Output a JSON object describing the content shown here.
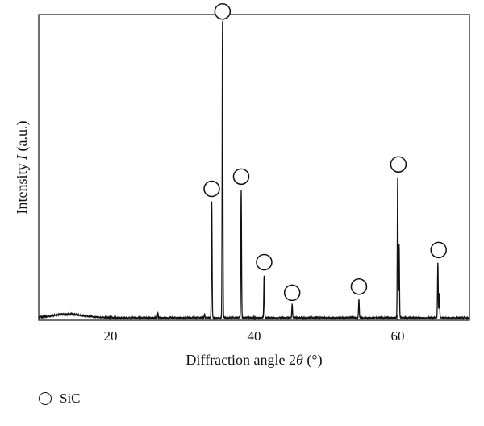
{
  "chart_data": {
    "type": "line",
    "xlabel_prefix": "Diffraction angle 2",
    "xlabel_symbol": "θ",
    "xlabel_unit": " (°)",
    "ylabel_prefix": "Intensity ",
    "ylabel_symbol": "I",
    "ylabel_unit": " (a.u.)",
    "xlim": [
      10,
      70
    ],
    "ylim": [
      0,
      100
    ],
    "x_ticks": [
      20,
      40,
      60
    ],
    "x_tick_labels": [
      "20",
      "40",
      "60"
    ],
    "y_ticks_labeled": false,
    "grid": false,
    "baseline": 0.8,
    "hump": {
      "center": 14,
      "height": 1.2,
      "width": 3
    },
    "peaks": [
      {
        "x": 26.6,
        "y": 1.5
      },
      {
        "x": 33.1,
        "y": 1.2
      },
      {
        "x": 34.1,
        "y": 38
      },
      {
        "x": 35.6,
        "y": 97
      },
      {
        "x": 38.2,
        "y": 42
      },
      {
        "x": 41.4,
        "y": 14
      },
      {
        "x": 45.3,
        "y": 4.5
      },
      {
        "x": 54.6,
        "y": 6
      },
      {
        "x": 60.0,
        "y": 46
      },
      {
        "x": 60.2,
        "y": 24
      },
      {
        "x": 65.6,
        "y": 18
      },
      {
        "x": 65.8,
        "y": 8
      }
    ],
    "markers": [
      {
        "x": 34.1,
        "y": 43
      },
      {
        "x": 35.6,
        "y": 101
      },
      {
        "x": 38.2,
        "y": 47
      },
      {
        "x": 41.4,
        "y": 19
      },
      {
        "x": 45.3,
        "y": 9
      },
      {
        "x": 54.6,
        "y": 11
      },
      {
        "x": 60.1,
        "y": 51
      },
      {
        "x": 65.7,
        "y": 23
      }
    ],
    "legend": {
      "placement": "bottom-left",
      "entries": [
        {
          "name": "SiC"
        }
      ]
    }
  }
}
